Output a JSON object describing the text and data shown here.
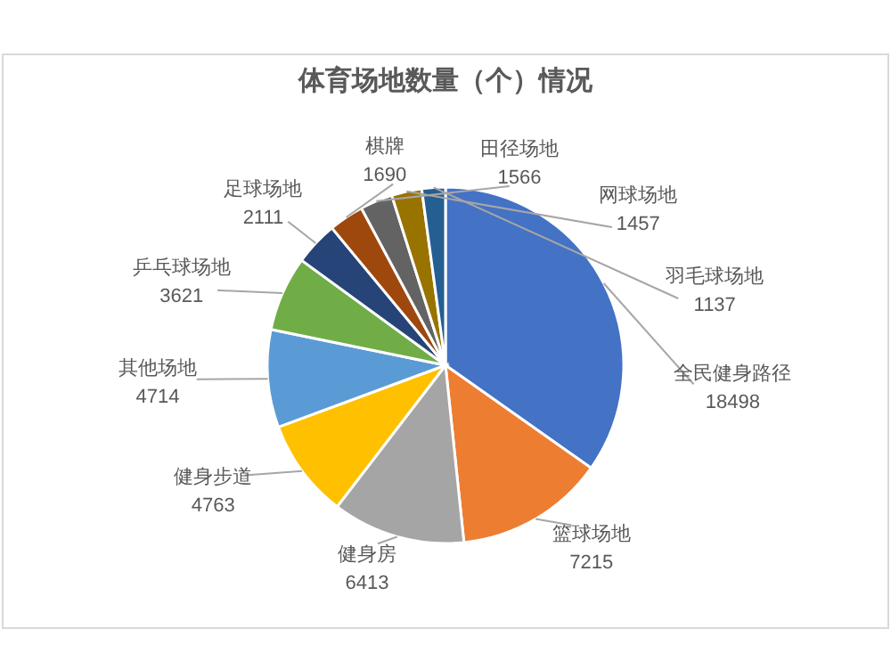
{
  "chart_data": {
    "type": "pie",
    "title": "体育场地数量（个）情况",
    "categories": [
      "全民健身路径",
      "篮球场地",
      "健身房",
      "健身步道",
      "其他场地",
      "乒乓球场地",
      "足球场地",
      "棋牌",
      "田径场地",
      "网球场地",
      "羽毛球场地"
    ],
    "values": [
      18498,
      7215,
      6413,
      4763,
      4714,
      3621,
      2111,
      1690,
      1566,
      1457,
      1137
    ],
    "colors": [
      "#4472c4",
      "#ed7d31",
      "#a5a5a5",
      "#ffc000",
      "#5b9bd5",
      "#70ad47",
      "#264478",
      "#9e480e",
      "#636363",
      "#997300",
      "#255e91"
    ],
    "data_labels": true
  }
}
